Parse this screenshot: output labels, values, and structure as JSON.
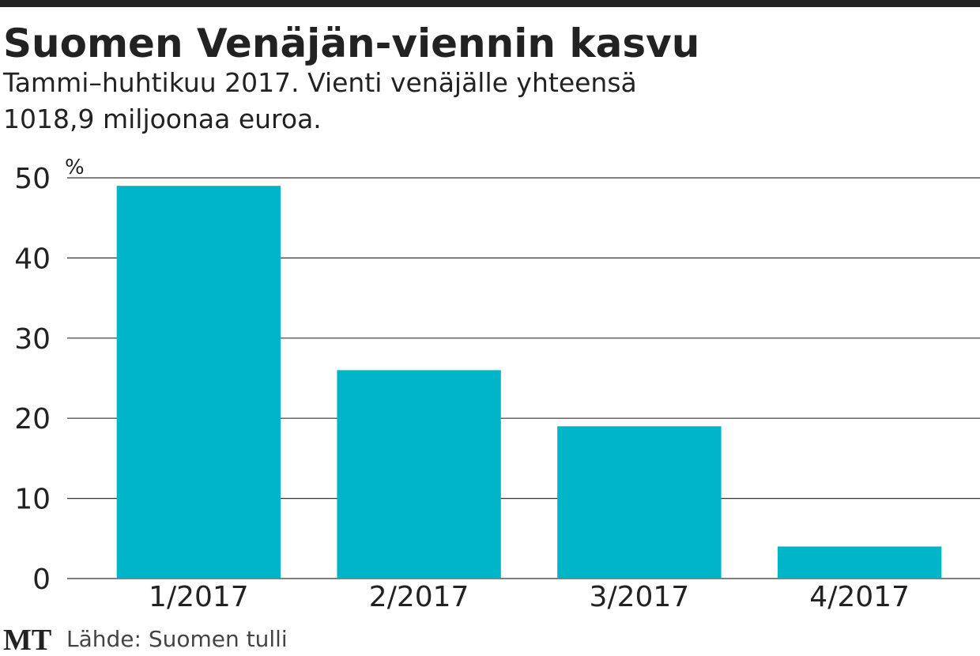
{
  "chart_data": {
    "type": "bar",
    "title": "Suomen Venäjän-viennin kasvu",
    "subtitle": [
      "Tammi–huhtikuu 2017. Vienti venäjälle yhteensä",
      "1018,9 miljoonaa euroa."
    ],
    "y_label": "%",
    "categories": [
      "1/2017",
      "2/2017",
      "3/2017",
      "4/2017"
    ],
    "values": [
      49,
      26,
      19,
      4
    ],
    "color": "#00b5c8",
    "ylim": [
      0,
      50
    ],
    "yticks": [
      0,
      10,
      20,
      30,
      40,
      50
    ],
    "grid": true,
    "logo": "MT",
    "source": "Lähde: Suomen tulli"
  }
}
